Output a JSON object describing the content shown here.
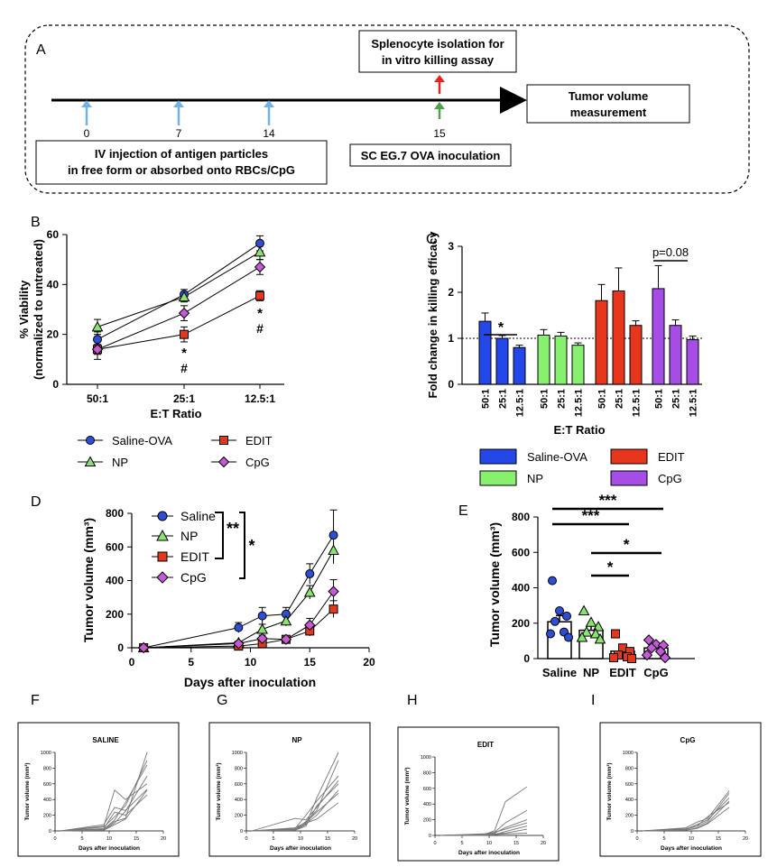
{
  "panels": {
    "A": "A",
    "B": "B",
    "C": "C",
    "D": "D",
    "E": "E",
    "F": "F",
    "G": "G",
    "H": "H",
    "I": "I"
  },
  "timeline": {
    "splenocyte_line1": "Splenocyte isolation for",
    "splenocyte_line2": "in vitro killing assay",
    "tumor_line1": "Tumor volume",
    "tumor_line2": "measurement",
    "injection_line1": "IV injection of antigen particles",
    "injection_line2": "in free form or absorbed onto RBCs/CpG",
    "inoculation": "SC EG.7 OVA inoculation",
    "days": [
      "0",
      "7",
      "14",
      "15"
    ],
    "colors": {
      "injection": "#6fb3e8",
      "red": "#e8231d",
      "green": "#4fa24a"
    }
  },
  "chart_data": [
    {
      "id": "B",
      "type": "line",
      "ylabel_line1": "% Viability",
      "ylabel_line2": "(normalized to untreated)",
      "xlabel": "E:T Ratio",
      "categories": [
        "50:1",
        "25:1",
        "12.5:1"
      ],
      "ylim": [
        0,
        60
      ],
      "yticks": [
        "0",
        "20",
        "40",
        "60"
      ],
      "series": [
        {
          "name": "Saline-OVA",
          "marker": "circle",
          "color": "#2d4fd8",
          "values": [
            18,
            36,
            56.5
          ],
          "err": [
            3,
            2,
            3
          ]
        },
        {
          "name": "NP",
          "marker": "triangle",
          "color": "#8be36f",
          "values": [
            23,
            35,
            53
          ],
          "err": [
            3,
            2,
            3
          ]
        },
        {
          "name": "EDIT",
          "marker": "square",
          "color": "#e0391f",
          "values": [
            14,
            20,
            35.5
          ],
          "err": [
            2,
            3,
            2
          ]
        },
        {
          "name": "CpG",
          "marker": "diamond",
          "color": "#c55ad8",
          "values": [
            14,
            28.5,
            47
          ],
          "err": [
            4,
            3,
            3
          ]
        }
      ],
      "annotations": [
        "*",
        "#",
        "*",
        "#"
      ]
    },
    {
      "id": "C",
      "type": "bar",
      "ylabel": "Fold change in killing efficacy",
      "xlabel": "E:T Ratio",
      "ylim": [
        0,
        3
      ],
      "yticks": [
        "0",
        "1",
        "2",
        "3"
      ],
      "reference_line": 1,
      "categories": [
        "50:1",
        "25:1",
        "12.5:1"
      ],
      "groups": [
        {
          "name": "Saline-OVA",
          "color": "#2347e8",
          "values": [
            1.37,
            1.0,
            0.8
          ],
          "err": [
            0.18,
            0.06,
            0.05
          ]
        },
        {
          "name": "NP",
          "color": "#87f06e",
          "values": [
            1.07,
            1.05,
            0.85
          ],
          "err": [
            0.12,
            0.08,
            0.05
          ]
        },
        {
          "name": "EDIT",
          "color": "#e8361c",
          "values": [
            1.82,
            2.03,
            1.28
          ],
          "err": [
            0.35,
            0.5,
            0.1
          ]
        },
        {
          "name": "CpG",
          "color": "#a64de6",
          "values": [
            2.08,
            1.28,
            0.97
          ],
          "err": [
            0.5,
            0.12,
            0.08
          ]
        }
      ],
      "annotations": [
        "*",
        "p=0.08"
      ]
    },
    {
      "id": "D",
      "type": "line",
      "ylabel": "Tumor volume (mm³)",
      "xlabel": "Days after inoculation",
      "xlim": [
        0,
        20
      ],
      "ylim": [
        0,
        800
      ],
      "xticks": [
        "0",
        "5",
        "10",
        "15",
        "20"
      ],
      "yticks": [
        "0",
        "200",
        "400",
        "600",
        "800"
      ],
      "series": [
        {
          "name": "Saline",
          "marker": "circle",
          "color": "#2d4fd8",
          "x": [
            1,
            9,
            11,
            13,
            15,
            17
          ],
          "values": [
            0,
            120,
            190,
            200,
            440,
            670
          ],
          "err": [
            0,
            30,
            50,
            40,
            60,
            150
          ]
        },
        {
          "name": "NP",
          "marker": "triangle",
          "color": "#8be36f",
          "x": [
            1,
            9,
            11,
            13,
            15,
            17
          ],
          "values": [
            0,
            30,
            110,
            160,
            330,
            580
          ],
          "err": [
            0,
            10,
            30,
            30,
            40,
            80
          ]
        },
        {
          "name": "EDIT",
          "marker": "square",
          "color": "#e0391f",
          "x": [
            1,
            9,
            11,
            13,
            15,
            17
          ],
          "values": [
            0,
            10,
            25,
            50,
            100,
            230
          ],
          "err": [
            0,
            5,
            10,
            20,
            30,
            50
          ]
        },
        {
          "name": "CpG",
          "marker": "diamond",
          "color": "#c55ad8",
          "x": [
            1,
            9,
            11,
            13,
            15,
            17
          ],
          "values": [
            0,
            25,
            55,
            50,
            135,
            335
          ],
          "err": [
            0,
            10,
            20,
            15,
            40,
            70
          ]
        }
      ],
      "annotations": [
        "**",
        "*"
      ]
    },
    {
      "id": "E",
      "type": "bar",
      "ylabel": "Tumor volume (mm³)",
      "ylim": [
        0,
        800
      ],
      "yticks": [
        "0",
        "200",
        "400",
        "600",
        "800"
      ],
      "categories": [
        "Saline",
        "NP",
        "EDIT",
        "CpG"
      ],
      "values": [
        208,
        160,
        42,
        60
      ],
      "err": [
        35,
        25,
        15,
        12
      ],
      "colors": [
        "#2d4fd8",
        "#8be36f",
        "#e0391f",
        "#c55ad8"
      ],
      "markers": [
        "circle",
        "triangle",
        "square",
        "diamond"
      ],
      "points": [
        [
          440,
          270,
          240,
          210,
          150,
          140,
          120
        ],
        [
          270,
          205,
          180,
          150,
          140,
          120,
          110
        ],
        [
          140,
          60,
          40,
          20,
          10,
          5,
          0
        ],
        [
          105,
          80,
          75,
          60,
          40,
          20,
          5
        ]
      ],
      "significance": [
        "***",
        "***",
        "*",
        "*"
      ]
    }
  ],
  "small_multiples": {
    "ylabel": "Tumor volume (mm³)",
    "xlabel": "Days after inoculation",
    "xticks": [
      "0",
      "5",
      "10",
      "15",
      "20"
    ],
    "yticks": [
      "0",
      "200",
      "400",
      "600",
      "800",
      "1000"
    ],
    "panels": [
      {
        "id": "F",
        "title": "SALINE",
        "curves": [
          [
            0,
            20,
            120,
            160,
            1000
          ],
          [
            0,
            50,
            180,
            320,
            900
          ],
          [
            0,
            10,
            100,
            250,
            700
          ],
          [
            0,
            60,
            520,
            400,
            600
          ],
          [
            0,
            80,
            300,
            260,
            530
          ],
          [
            0,
            30,
            240,
            200,
            460
          ],
          [
            0,
            10,
            80,
            150,
            520
          ],
          [
            0,
            20,
            140,
            360,
            840
          ]
        ]
      },
      {
        "id": "G",
        "title": "NP",
        "curves": [
          [
            0,
            10,
            80,
            420,
            1000
          ],
          [
            0,
            20,
            120,
            260,
            900
          ],
          [
            0,
            160,
            140,
            300,
            640
          ],
          [
            0,
            30,
            200,
            380,
            700
          ],
          [
            0,
            10,
            100,
            150,
            360
          ],
          [
            0,
            20,
            90,
            200,
            520
          ],
          [
            0,
            10,
            60,
            320,
            600
          ],
          [
            0,
            40,
            110,
            240,
            480
          ]
        ]
      },
      {
        "id": "H",
        "title": "EDIT",
        "curves": [
          [
            0,
            10,
            60,
            430,
            620
          ],
          [
            0,
            20,
            40,
            160,
            320
          ],
          [
            0,
            10,
            30,
            100,
            200
          ],
          [
            0,
            0,
            10,
            50,
            120
          ],
          [
            0,
            10,
            20,
            30,
            80
          ],
          [
            0,
            5,
            10,
            20,
            30
          ],
          [
            0,
            15,
            40,
            80,
            160
          ]
        ]
      },
      {
        "id": "I",
        "title": "CpG",
        "curves": [
          [
            0,
            40,
            110,
            160,
            510
          ],
          [
            0,
            30,
            60,
            120,
            480
          ],
          [
            0,
            20,
            80,
            140,
            420
          ],
          [
            0,
            10,
            40,
            100,
            380
          ],
          [
            0,
            20,
            60,
            180,
            360
          ],
          [
            0,
            10,
            30,
            90,
            300
          ]
        ]
      }
    ]
  }
}
